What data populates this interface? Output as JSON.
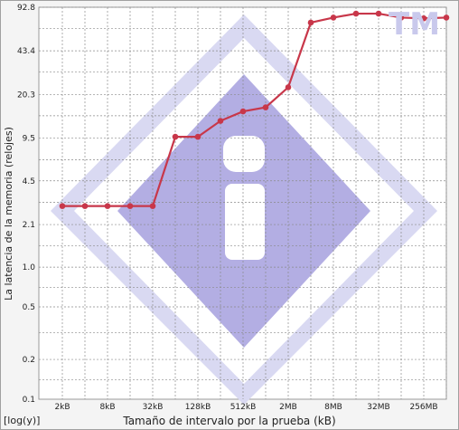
{
  "chart_data": {
    "type": "line",
    "ylabel": "La latencia de la memoria (relojes)",
    "xlabel": "Tamaño de intervalo por la prueba (kB)",
    "scale_note": "[log(y)]",
    "watermark_text": "TM",
    "x_ticks": [
      "2kB",
      "8kB",
      "32kB",
      "128kB",
      "512kB",
      "2MB",
      "8MB",
      "32MB",
      "256MB"
    ],
    "y_ticks": [
      "92.8",
      "43.4",
      "20.3",
      "9.5",
      "4.5",
      "2.1",
      "1.0",
      "0.5",
      "0.2",
      "0.1"
    ],
    "y_scale": "log",
    "grid": true,
    "series": [
      {
        "color": "#c8374a",
        "x": [
          "2kB",
          "4kB",
          "8kB",
          "16kB",
          "32kB",
          "64kB",
          "128kB",
          "256kB",
          "512kB",
          "1MB",
          "2MB",
          "4MB",
          "8MB",
          "16MB",
          "32MB",
          "64MB",
          "128MB",
          "256MB"
        ],
        "values": [
          2.9,
          2.9,
          2.9,
          2.9,
          2.9,
          9.7,
          9.7,
          12.8,
          15.1,
          16.2,
          23.0,
          71.0,
          77.5,
          83.0,
          83.0,
          77.5,
          76.5,
          77.5
        ]
      }
    ]
  }
}
